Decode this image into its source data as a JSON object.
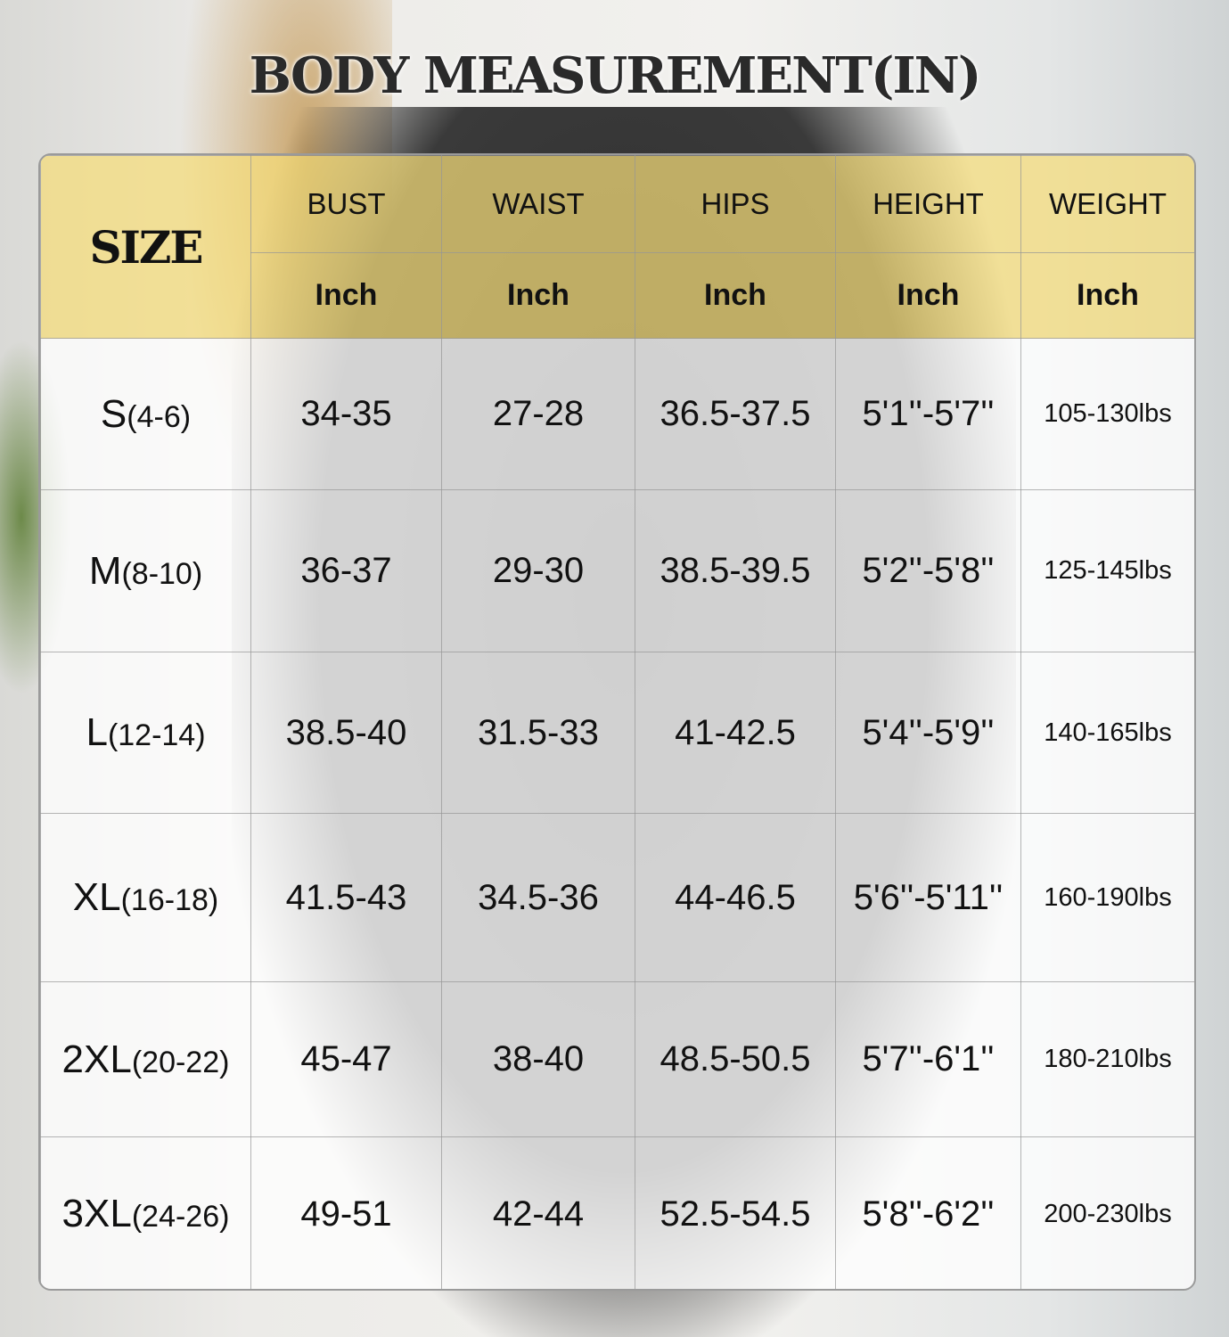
{
  "title": "BODY MEASUREMENT(IN)",
  "table": {
    "size_header": "SIZE",
    "columns": [
      "BUST",
      "WAIST",
      "HIPS",
      "HEIGHT",
      "WEIGHT"
    ],
    "units": [
      "Inch",
      "Inch",
      "Inch",
      "Inch",
      "Inch"
    ],
    "rows": [
      {
        "size": "S",
        "range": "(4-6)",
        "values": [
          "34-35",
          "27-28",
          "36.5-37.5",
          "5'1''-5'7''",
          "105-130lbs"
        ]
      },
      {
        "size": "M",
        "range": "(8-10)",
        "values": [
          "36-37",
          "29-30",
          "38.5-39.5",
          "5'2''-5'8''",
          "125-145lbs"
        ]
      },
      {
        "size": "L",
        "range": "(12-14)",
        "values": [
          "38.5-40",
          "31.5-33",
          "41-42.5",
          "5'4''-5'9''",
          "140-165lbs"
        ]
      },
      {
        "size": "XL",
        "range": "(16-18)",
        "values": [
          "41.5-43",
          "34.5-36",
          "44-46.5",
          "5'6''-5'11''",
          "160-190lbs"
        ]
      },
      {
        "size": "2XL",
        "range": "(20-22)",
        "values": [
          "45-47",
          "38-40",
          "48.5-50.5",
          "5'7''-6'1''",
          "180-210lbs"
        ]
      },
      {
        "size": "3XL",
        "range": "(24-26)",
        "values": [
          "49-51",
          "42-44",
          "52.5-54.5",
          "5'8''-6'2''",
          "200-230lbs"
        ]
      }
    ]
  },
  "colors": {
    "header_bg": "#f5dc78",
    "body_bg": "#ffffff",
    "border": "#969696"
  }
}
